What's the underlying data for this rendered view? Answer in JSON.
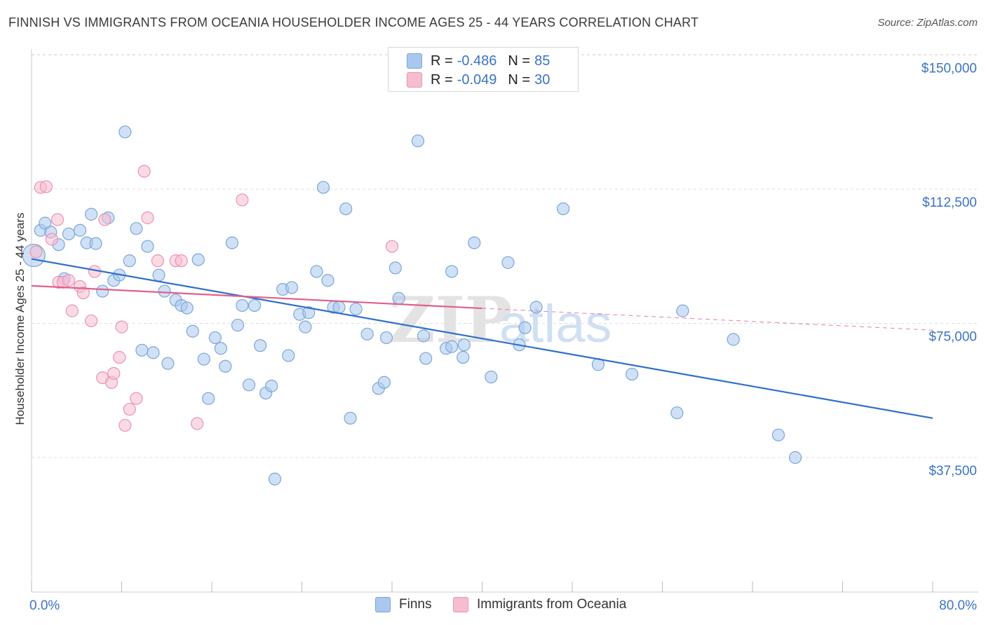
{
  "title": "FINNISH VS IMMIGRANTS FROM OCEANIA HOUSEHOLDER INCOME AGES 25 - 44 YEARS CORRELATION CHART",
  "source": "Source: ZipAtlas.com",
  "watermark": {
    "zip": "ZIP",
    "atlas": "atlas"
  },
  "legend_top": [
    {
      "r_label": "R =",
      "r_value": "-0.486",
      "n_label": "N =",
      "n_value": "85",
      "color": "#aac8ee"
    },
    {
      "r_label": "R =",
      "r_value": "-0.049",
      "n_label": "N =",
      "n_value": "30",
      "color": "#f6bdd0"
    }
  ],
  "legend_bottom": [
    {
      "label": "Finns",
      "color": "#aac8ee"
    },
    {
      "label": "Immigrants from Oceania",
      "color": "#f6bdd0"
    }
  ],
  "colors": {
    "finns_fill": "#aac8ee",
    "finns_stroke": "#7aa6db",
    "finns_line": "#2f6fcc",
    "oceania_fill": "#f6bdd0",
    "oceania_stroke": "#ec92b0",
    "oceania_line": "#e0608b",
    "tick_label": "#3b73c8",
    "grid": "#dddddd"
  },
  "chart_data": {
    "type": "scatter",
    "title": "FINNISH VS IMMIGRANTS FROM OCEANIA HOUSEHOLDER INCOME AGES 25 - 44 YEARS CORRELATION CHART",
    "xlabel": "",
    "ylabel": "Householder Income Ages 25 - 44 years",
    "xlim": [
      0,
      80
    ],
    "ylim": [
      0,
      155000
    ],
    "x_tick_labels": [
      "0.0%",
      "80.0%"
    ],
    "y_ticks": [
      37500,
      75000,
      112500,
      150000
    ],
    "y_tick_labels": [
      "$37,500",
      "$75,000",
      "$112,500",
      "$150,000"
    ],
    "grid": true,
    "legend_position": "top-center",
    "series": [
      {
        "name": "Finns",
        "r": -0.486,
        "n": 85,
        "trend": {
          "x": [
            0,
            80
          ],
          "y": [
            93000,
            48500
          ]
        },
        "points": [
          [
            0.2,
            94000
          ],
          [
            0.8,
            101000
          ],
          [
            1.2,
            103000
          ],
          [
            1.7,
            100500
          ],
          [
            2.4,
            97000
          ],
          [
            2.9,
            87500
          ],
          [
            3.3,
            100000
          ],
          [
            4.3,
            101000
          ],
          [
            4.9,
            97500
          ],
          [
            5.3,
            105500
          ],
          [
            5.7,
            97300
          ],
          [
            6.3,
            84000
          ],
          [
            6.8,
            104500
          ],
          [
            7.3,
            87000
          ],
          [
            7.8,
            88500
          ],
          [
            8.3,
            128500
          ],
          [
            8.7,
            92500
          ],
          [
            9.3,
            101500
          ],
          [
            9.8,
            67500
          ],
          [
            10.3,
            96500
          ],
          [
            10.8,
            66800
          ],
          [
            11.3,
            88500
          ],
          [
            11.8,
            84000
          ],
          [
            12.1,
            63800
          ],
          [
            12.8,
            81500
          ],
          [
            13.3,
            80000
          ],
          [
            13.8,
            79300
          ],
          [
            14.3,
            72800
          ],
          [
            14.8,
            92800
          ],
          [
            15.3,
            65000
          ],
          [
            15.7,
            54000
          ],
          [
            16.3,
            71000
          ],
          [
            16.8,
            68000
          ],
          [
            17.2,
            63000
          ],
          [
            17.8,
            97500
          ],
          [
            18.3,
            74500
          ],
          [
            18.7,
            80000
          ],
          [
            19.3,
            57800
          ],
          [
            19.8,
            80000
          ],
          [
            20.3,
            68800
          ],
          [
            20.8,
            55500
          ],
          [
            21.3,
            57500
          ],
          [
            21.6,
            31500
          ],
          [
            22.3,
            84500
          ],
          [
            22.8,
            66000
          ],
          [
            23.1,
            85000
          ],
          [
            23.8,
            77500
          ],
          [
            24.3,
            74000
          ],
          [
            24.6,
            78000
          ],
          [
            25.3,
            89500
          ],
          [
            25.9,
            113000
          ],
          [
            26.3,
            87000
          ],
          [
            26.8,
            79500
          ],
          [
            27.3,
            79500
          ],
          [
            27.9,
            107000
          ],
          [
            28.3,
            48500
          ],
          [
            28.8,
            79000
          ],
          [
            29.8,
            72000
          ],
          [
            30.8,
            56800
          ],
          [
            31.3,
            58500
          ],
          [
            31.5,
            71000
          ],
          [
            32.3,
            90500
          ],
          [
            32.6,
            82000
          ],
          [
            34.3,
            126000
          ],
          [
            34.8,
            71500
          ],
          [
            35.0,
            65200
          ],
          [
            36.8,
            68000
          ],
          [
            37.3,
            89500
          ],
          [
            37.3,
            68500
          ],
          [
            38.3,
            65500
          ],
          [
            38.4,
            69000
          ],
          [
            39.3,
            97500
          ],
          [
            40.8,
            60000
          ],
          [
            42.3,
            92000
          ],
          [
            43.3,
            69000
          ],
          [
            43.8,
            73800
          ],
          [
            44.8,
            79500
          ],
          [
            50.3,
            63500
          ],
          [
            53.3,
            60800
          ],
          [
            57.3,
            50000
          ],
          [
            57.8,
            78500
          ],
          [
            62.3,
            70500
          ],
          [
            66.3,
            43800
          ],
          [
            67.8,
            37500
          ],
          [
            47.2,
            107000
          ]
        ]
      },
      {
        "name": "Immigrants from Oceania",
        "r": -0.049,
        "n": 30,
        "trend": {
          "x": [
            0,
            40
          ],
          "y": [
            85500,
            79200
          ],
          "dashed_to": [
            80,
            73100
          ]
        },
        "points": [
          [
            0.4,
            95000
          ],
          [
            0.8,
            113000
          ],
          [
            1.3,
            113200
          ],
          [
            1.8,
            98500
          ],
          [
            2.3,
            104000
          ],
          [
            2.4,
            86500
          ],
          [
            2.8,
            86500
          ],
          [
            3.3,
            87000
          ],
          [
            3.6,
            78500
          ],
          [
            4.3,
            85300
          ],
          [
            4.6,
            83500
          ],
          [
            5.3,
            75700
          ],
          [
            5.6,
            89500
          ],
          [
            6.3,
            59800
          ],
          [
            6.5,
            104000
          ],
          [
            7.1,
            58500
          ],
          [
            7.3,
            61000
          ],
          [
            7.8,
            65500
          ],
          [
            8.0,
            74000
          ],
          [
            8.3,
            46500
          ],
          [
            8.7,
            51000
          ],
          [
            9.3,
            54000
          ],
          [
            10.0,
            117500
          ],
          [
            10.3,
            104500
          ],
          [
            11.2,
            92500
          ],
          [
            12.8,
            92500
          ],
          [
            13.3,
            92500
          ],
          [
            14.7,
            47000
          ],
          [
            18.7,
            109500
          ],
          [
            32.0,
            96500
          ]
        ]
      }
    ]
  }
}
